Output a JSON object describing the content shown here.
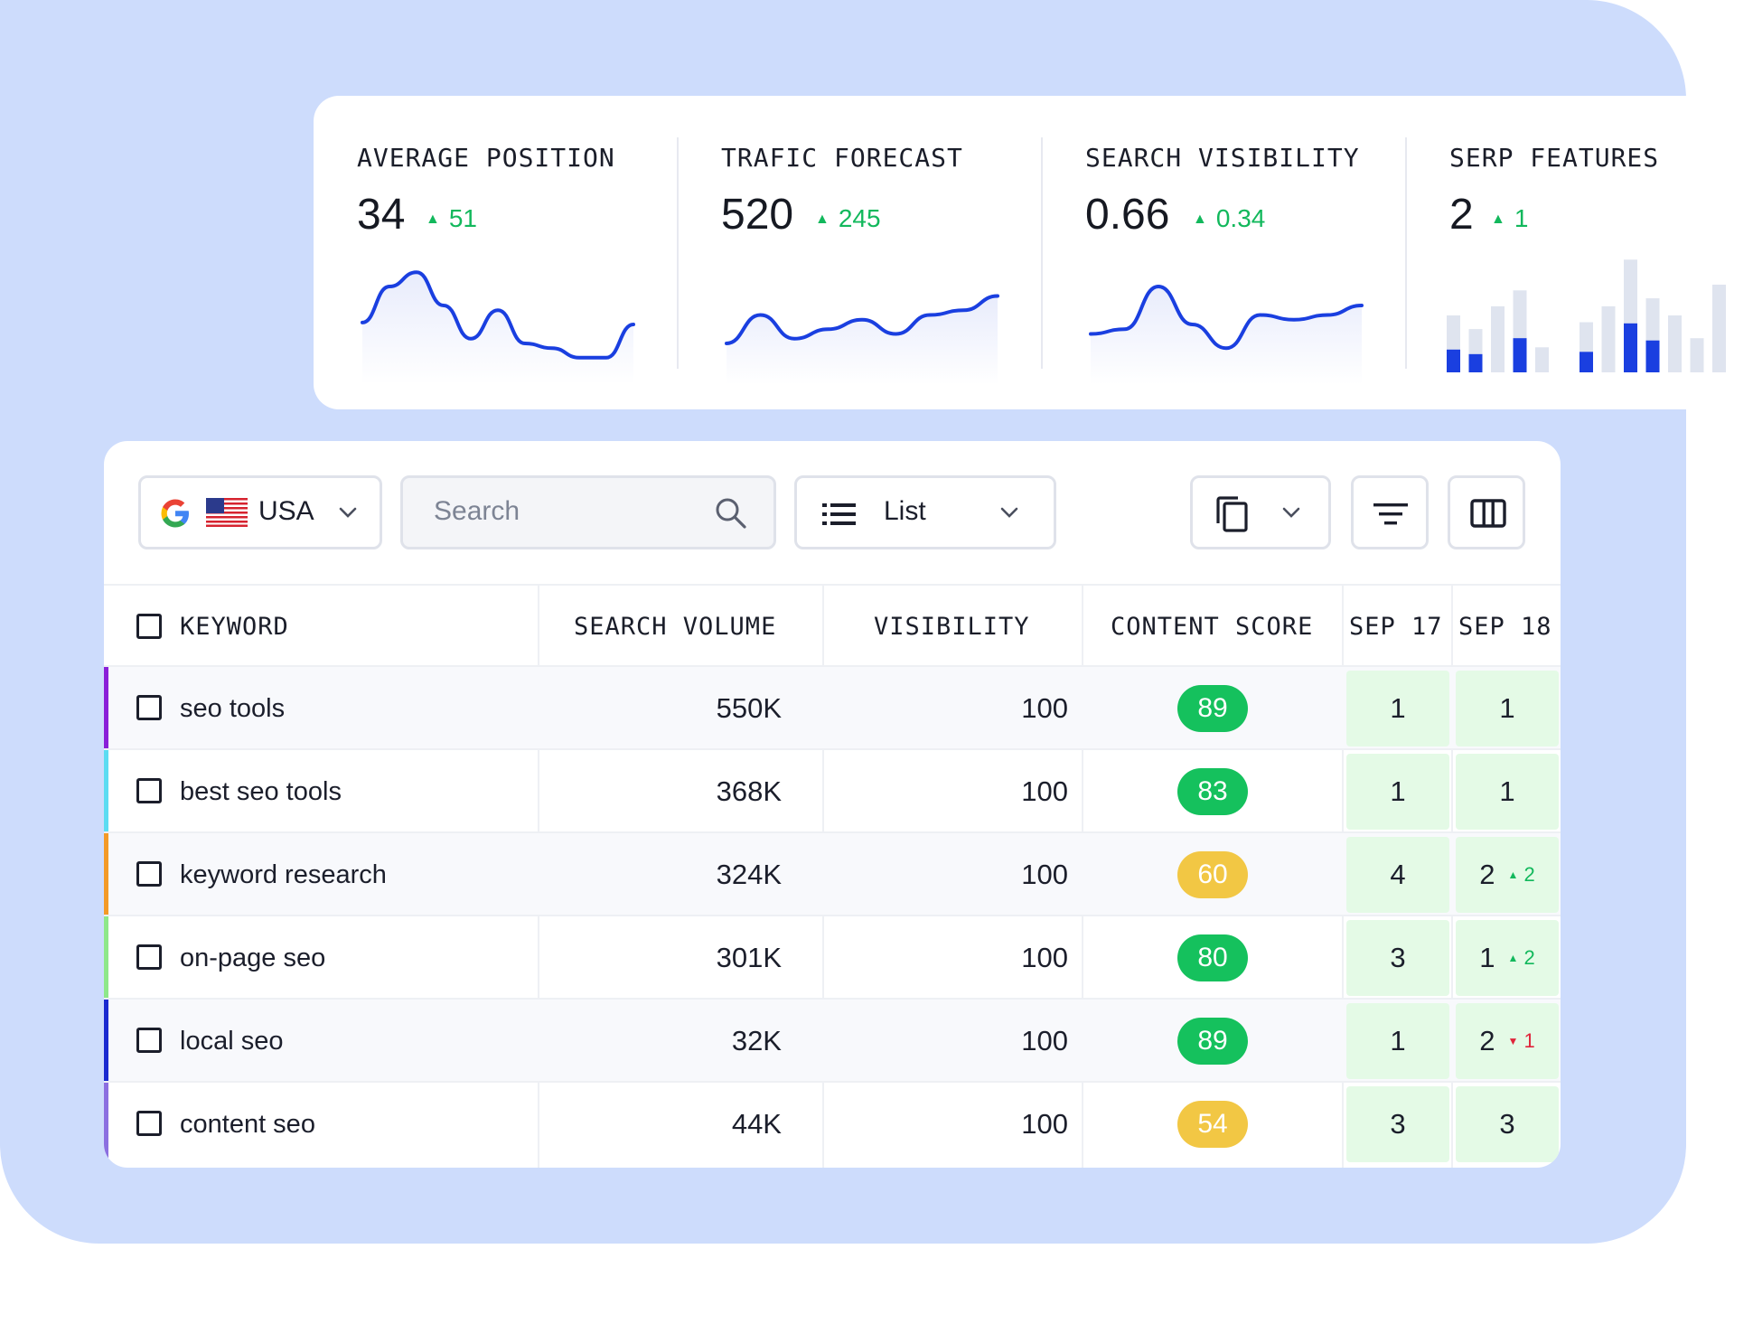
{
  "colors": {
    "accent": "#1a3fe0",
    "up": "#12b85c",
    "down": "#e0243a",
    "score_green": "#15c15d",
    "score_yellow": "#f2c744",
    "rank_bg": "#e4fae6",
    "backdrop": "#cddcfc"
  },
  "stats": [
    {
      "title": "AVERAGE POSITION",
      "value": "34",
      "delta": "51",
      "trend": "up",
      "spark": [
        0.42,
        0.8,
        0.95,
        0.6,
        0.25,
        0.55,
        0.2,
        0.15,
        0.05,
        0.05,
        0.4
      ]
    },
    {
      "title": "TRAFIC FORECAST",
      "value": "520",
      "delta": "245",
      "trend": "up",
      "spark": [
        0.2,
        0.5,
        0.25,
        0.35,
        0.45,
        0.3,
        0.5,
        0.55,
        0.7
      ]
    },
    {
      "title": "SEARCH VISIBILITY",
      "value": "0.66",
      "delta": "0.34",
      "trend": "up",
      "spark": [
        0.3,
        0.35,
        0.8,
        0.4,
        0.15,
        0.5,
        0.45,
        0.5,
        0.6
      ]
    },
    {
      "title": "SERP FEATURES",
      "value": "2",
      "delta": "1",
      "trend": "up",
      "bars": [
        {
          "total": 0.5,
          "fill": 0.2
        },
        {
          "total": 0.38,
          "fill": 0.16
        },
        {
          "total": 0.58,
          "fill": 0
        },
        {
          "total": 0.72,
          "fill": 0.3
        },
        {
          "total": 0.22,
          "fill": 0
        },
        {
          "total": 0,
          "fill": 0
        },
        {
          "total": 0.44,
          "fill": 0.18
        },
        {
          "total": 0.58,
          "fill": 0
        },
        {
          "total": 0.99,
          "fill": 0.43
        },
        {
          "total": 0.65,
          "fill": 0.28
        },
        {
          "total": 0.5,
          "fill": 0
        },
        {
          "total": 0.3,
          "fill": 0
        },
        {
          "total": 0.77,
          "fill": 0
        }
      ]
    }
  ],
  "toolbar": {
    "country": "USA",
    "search_placeholder": "Search",
    "view": "List"
  },
  "table": {
    "headers": {
      "keyword": "KEYWORD",
      "volume": "SEARCH VOLUME",
      "visibility": "VISIBILITY",
      "score": "CONTENT SCORE",
      "d1": "SEP 17",
      "d2": "SEP 18"
    },
    "rows": [
      {
        "keyword": "seo tools",
        "volume": "550K",
        "visibility": "100",
        "score": "89",
        "score_color": "green",
        "stripe": "#8a1fd8",
        "sep17": "1",
        "sep18": "1",
        "change": "",
        "change_dir": ""
      },
      {
        "keyword": "best seo tools",
        "volume": "368K",
        "visibility": "100",
        "score": "83",
        "score_color": "green",
        "stripe": "#5cdcf2",
        "sep17": "1",
        "sep18": "1",
        "change": "",
        "change_dir": ""
      },
      {
        "keyword": "keyword research",
        "volume": "324K",
        "visibility": "100",
        "score": "60",
        "score_color": "yellow",
        "stripe": "#f39a27",
        "sep17": "4",
        "sep18": "2",
        "change": "2",
        "change_dir": "up"
      },
      {
        "keyword": "on-page seo",
        "volume": "301K",
        "visibility": "100",
        "score": "80",
        "score_color": "green",
        "stripe": "#8ee88a",
        "sep17": "3",
        "sep18": "1",
        "change": "2",
        "change_dir": "up"
      },
      {
        "keyword": "local seo",
        "volume": "32K",
        "visibility": "100",
        "score": "89",
        "score_color": "green",
        "stripe": "#1a2ad0",
        "sep17": "1",
        "sep18": "2",
        "change": "1",
        "change_dir": "down"
      },
      {
        "keyword": "content seo",
        "volume": "44K",
        "visibility": "100",
        "score": "54",
        "score_color": "yellow",
        "stripe": "#8b6fe0",
        "sep17": "3",
        "sep18": "3",
        "change": "",
        "change_dir": ""
      }
    ]
  }
}
